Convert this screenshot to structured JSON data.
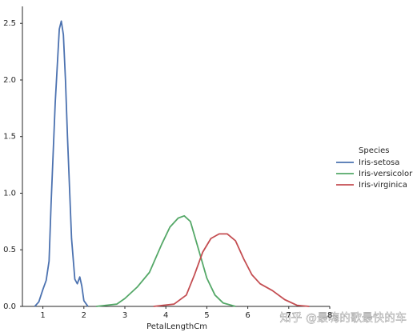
{
  "chart_data": {
    "type": "line",
    "xlabel": "PetalLengthCm",
    "legend_title": "Species",
    "legend": "right",
    "grid": false,
    "xlim": [
      0.5,
      8.0
    ],
    "ylim": [
      0,
      2.65
    ],
    "xticks": [
      1,
      2,
      3,
      4,
      5,
      6,
      7,
      8
    ],
    "yticks": [
      {
        "value": 0,
        "label": "0.0"
      },
      0.5,
      {
        "value": 1,
        "label": "1.0"
      },
      1.5,
      {
        "value": 2,
        "label": "2.0"
      },
      2.5
    ],
    "series": [
      {
        "name": "Iris-setosa",
        "color": "#4c72b0",
        "x": [
          0.8,
          0.9,
          1.0,
          1.08,
          1.15,
          1.2,
          1.3,
          1.4,
          1.45,
          1.5,
          1.55,
          1.6,
          1.7,
          1.78,
          1.84,
          1.9,
          1.95,
          2.0,
          2.1
        ],
        "values": [
          0.0,
          0.04,
          0.15,
          0.23,
          0.4,
          0.9,
          1.8,
          2.45,
          2.52,
          2.4,
          2.0,
          1.5,
          0.6,
          0.24,
          0.2,
          0.26,
          0.18,
          0.05,
          0.0
        ]
      },
      {
        "name": "Iris-versicolor",
        "color": "#55a868",
        "x": [
          2.3,
          2.8,
          3.0,
          3.3,
          3.6,
          3.9,
          4.1,
          4.3,
          4.45,
          4.6,
          4.8,
          5.0,
          5.2,
          5.4,
          5.7
        ],
        "values": [
          0.0,
          0.02,
          0.07,
          0.17,
          0.3,
          0.55,
          0.7,
          0.78,
          0.8,
          0.75,
          0.5,
          0.25,
          0.1,
          0.03,
          0.0
        ]
      },
      {
        "name": "Iris-virginica",
        "color": "#c44e52",
        "x": [
          3.7,
          4.2,
          4.5,
          4.7,
          4.9,
          5.1,
          5.3,
          5.5,
          5.7,
          5.9,
          6.1,
          6.3,
          6.6,
          6.9,
          7.2,
          7.5
        ],
        "values": [
          0.0,
          0.02,
          0.1,
          0.28,
          0.48,
          0.6,
          0.64,
          0.64,
          0.58,
          0.42,
          0.28,
          0.2,
          0.14,
          0.06,
          0.01,
          0.0
        ]
      }
    ],
    "watermark": "知乎 @最嗨的歌最快的车"
  }
}
